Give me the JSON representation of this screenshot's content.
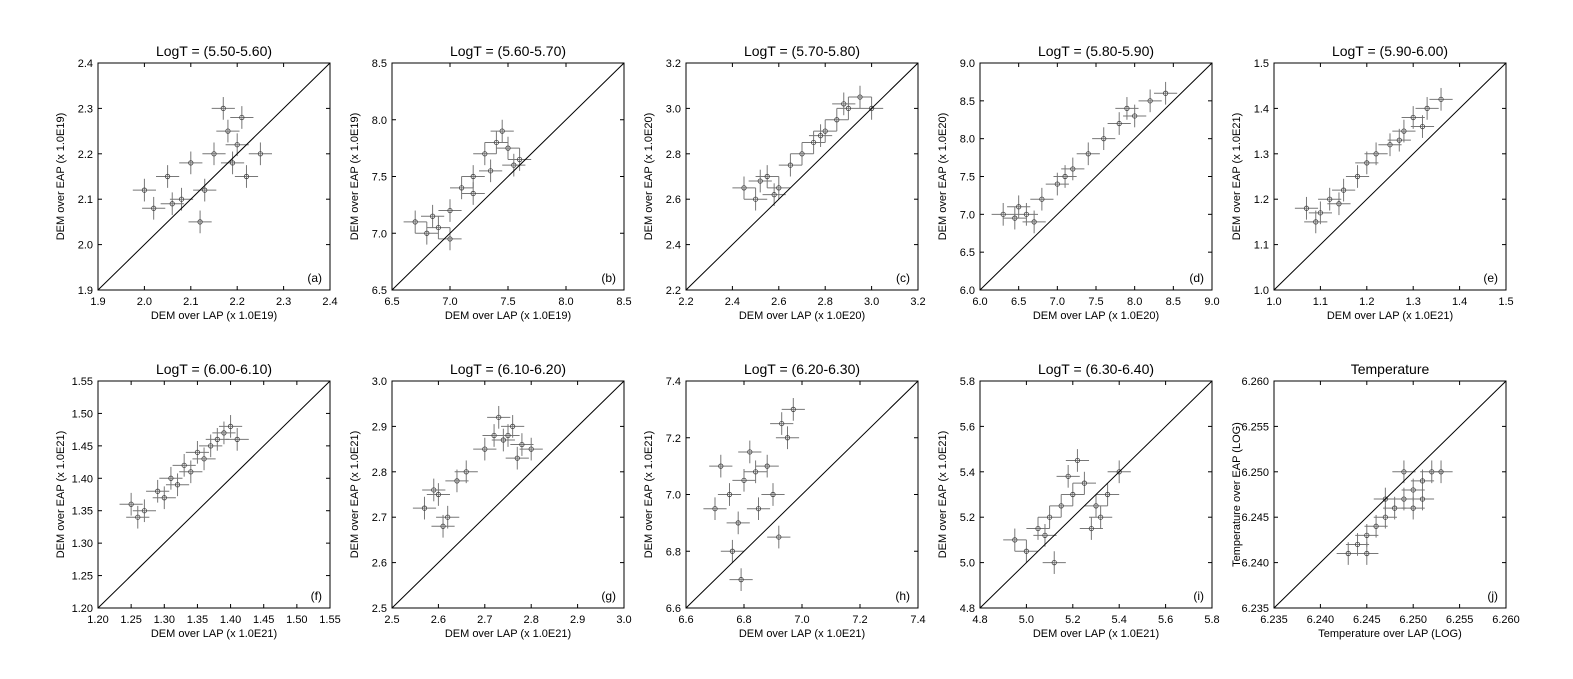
{
  "chart_data": [
    {
      "type": "scatter",
      "panel": "(a)",
      "title": "LogT = (5.50-5.60)",
      "xlabel": "DEM over LAP (x 1.0E19)",
      "ylabel": "DEM over EAP (x 1.0E19)",
      "xlim": [
        1.9,
        2.4
      ],
      "ylim": [
        1.9,
        2.4
      ],
      "xticks": [
        "1.9",
        "2.0",
        "2.1",
        "2.2",
        "2.3",
        "2.4"
      ],
      "yticks": [
        "1.9",
        "2.0",
        "2.1",
        "2.2",
        "2.3",
        "2.4"
      ],
      "points": [
        [
          2.0,
          2.12
        ],
        [
          2.02,
          2.08
        ],
        [
          2.05,
          2.15
        ],
        [
          2.08,
          2.1
        ],
        [
          2.1,
          2.18
        ],
        [
          2.12,
          2.05
        ],
        [
          2.15,
          2.2
        ],
        [
          2.18,
          2.25
        ],
        [
          2.2,
          2.22
        ],
        [
          2.22,
          2.15
        ],
        [
          2.25,
          2.2
        ],
        [
          2.17,
          2.3
        ],
        [
          2.13,
          2.12
        ],
        [
          2.21,
          2.28
        ],
        [
          2.19,
          2.18
        ],
        [
          2.06,
          2.09
        ]
      ]
    },
    {
      "type": "scatter",
      "panel": "(b)",
      "title": "LogT = (5.60-5.70)",
      "xlabel": "DEM over LAP (x 1.0E19)",
      "ylabel": "DEM over EAP (x 1.0E19)",
      "xlim": [
        6.5,
        8.5
      ],
      "ylim": [
        6.5,
        8.5
      ],
      "xticks": [
        "6.5",
        "7.0",
        "7.5",
        "8.0",
        "8.5"
      ],
      "yticks": [
        "6.5",
        "7.0",
        "7.5",
        "8.0",
        "8.5"
      ],
      "points": [
        [
          6.7,
          7.1
        ],
        [
          6.8,
          7.0
        ],
        [
          6.9,
          7.05
        ],
        [
          7.0,
          7.2
        ],
        [
          7.1,
          7.4
        ],
        [
          7.2,
          7.5
        ],
        [
          7.3,
          7.7
        ],
        [
          7.4,
          7.8
        ],
        [
          7.5,
          7.75
        ],
        [
          7.6,
          7.65
        ],
        [
          7.0,
          6.95
        ],
        [
          6.85,
          7.15
        ],
        [
          7.35,
          7.55
        ],
        [
          7.45,
          7.9
        ],
        [
          7.55,
          7.6
        ],
        [
          7.2,
          7.35
        ]
      ]
    },
    {
      "type": "scatter",
      "panel": "(c)",
      "title": "LogT = (5.70-5.80)",
      "xlabel": "DEM over LAP (x 1.0E20)",
      "ylabel": "DEM over EAP (x 1.0E20)",
      "xlim": [
        2.2,
        3.2
      ],
      "ylim": [
        2.2,
        3.2
      ],
      "xticks": [
        "2.2",
        "2.4",
        "2.6",
        "2.8",
        "3.0",
        "3.2"
      ],
      "yticks": [
        "2.2",
        "2.4",
        "2.6",
        "2.8",
        "3.0",
        "3.2"
      ],
      "points": [
        [
          2.45,
          2.65
        ],
        [
          2.5,
          2.6
        ],
        [
          2.55,
          2.7
        ],
        [
          2.6,
          2.65
        ],
        [
          2.65,
          2.75
        ],
        [
          2.7,
          2.8
        ],
        [
          2.75,
          2.85
        ],
        [
          2.8,
          2.9
        ],
        [
          2.85,
          2.95
        ],
        [
          2.9,
          3.0
        ],
        [
          2.95,
          3.05
        ],
        [
          3.0,
          3.0
        ],
        [
          2.58,
          2.62
        ],
        [
          2.88,
          3.02
        ],
        [
          2.52,
          2.68
        ],
        [
          2.78,
          2.88
        ]
      ]
    },
    {
      "type": "scatter",
      "panel": "(d)",
      "title": "LogT = (5.80-5.90)",
      "xlabel": "DEM over LAP (x 1.0E20)",
      "ylabel": "DEM over EAP (x 1.0E20)",
      "xlim": [
        6.0,
        9.0
      ],
      "ylim": [
        6.0,
        9.0
      ],
      "xticks": [
        "6.0",
        "6.5",
        "7.0",
        "7.5",
        "8.0",
        "8.5",
        "9.0"
      ],
      "yticks": [
        "6.0",
        "6.5",
        "7.0",
        "7.5",
        "8.0",
        "8.5",
        "9.0"
      ],
      "points": [
        [
          6.3,
          7.0
        ],
        [
          6.5,
          7.1
        ],
        [
          6.6,
          7.0
        ],
        [
          6.8,
          7.2
        ],
        [
          7.0,
          7.4
        ],
        [
          7.2,
          7.6
        ],
        [
          7.4,
          7.8
        ],
        [
          7.6,
          8.0
        ],
        [
          7.8,
          8.2
        ],
        [
          8.0,
          8.3
        ],
        [
          8.2,
          8.5
        ],
        [
          8.4,
          8.6
        ],
        [
          6.7,
          6.9
        ],
        [
          7.9,
          8.4
        ],
        [
          7.1,
          7.5
        ],
        [
          6.45,
          6.95
        ]
      ]
    },
    {
      "type": "scatter",
      "panel": "(e)",
      "title": "LogT = (5.90-6.00)",
      "xlabel": "DEM over LAP (x 1.0E21)",
      "ylabel": "DEM over EAP (x 1.0E21)",
      "xlim": [
        1.0,
        1.5
      ],
      "ylim": [
        1.0,
        1.5
      ],
      "xticks": [
        "1.0",
        "1.1",
        "1.2",
        "1.3",
        "1.4",
        "1.5"
      ],
      "yticks": [
        "1.0",
        "1.1",
        "1.2",
        "1.3",
        "1.4",
        "1.5"
      ],
      "points": [
        [
          1.07,
          1.18
        ],
        [
          1.1,
          1.17
        ],
        [
          1.12,
          1.2
        ],
        [
          1.15,
          1.22
        ],
        [
          1.18,
          1.25
        ],
        [
          1.2,
          1.28
        ],
        [
          1.22,
          1.3
        ],
        [
          1.25,
          1.32
        ],
        [
          1.28,
          1.35
        ],
        [
          1.3,
          1.38
        ],
        [
          1.33,
          1.4
        ],
        [
          1.36,
          1.42
        ],
        [
          1.09,
          1.15
        ],
        [
          1.27,
          1.33
        ],
        [
          1.14,
          1.19
        ],
        [
          1.32,
          1.36
        ]
      ]
    },
    {
      "type": "scatter",
      "panel": "(f)",
      "title": "LogT = (6.00-6.10)",
      "xlabel": "DEM over LAP (x 1.0E21)",
      "ylabel": "DEM over EAP (x 1.0E21)",
      "xlim": [
        1.2,
        1.55
      ],
      "ylim": [
        1.2,
        1.55
      ],
      "xticks": [
        "1.20",
        "1.25",
        "1.30",
        "1.35",
        "1.40",
        "1.45",
        "1.50",
        "1.55"
      ],
      "yticks": [
        "1.20",
        "1.25",
        "1.30",
        "1.35",
        "1.40",
        "1.45",
        "1.50",
        "1.55"
      ],
      "points": [
        [
          1.25,
          1.36
        ],
        [
          1.27,
          1.35
        ],
        [
          1.29,
          1.38
        ],
        [
          1.31,
          1.4
        ],
        [
          1.33,
          1.42
        ],
        [
          1.35,
          1.44
        ],
        [
          1.37,
          1.45
        ],
        [
          1.39,
          1.47
        ],
        [
          1.4,
          1.48
        ],
        [
          1.3,
          1.37
        ],
        [
          1.26,
          1.34
        ],
        [
          1.34,
          1.41
        ],
        [
          1.38,
          1.46
        ],
        [
          1.32,
          1.39
        ],
        [
          1.36,
          1.43
        ],
        [
          1.41,
          1.46
        ]
      ]
    },
    {
      "type": "scatter",
      "panel": "(g)",
      "title": "LogT = (6.10-6.20)",
      "xlabel": "DEM over LAP (x 1.0E21)",
      "ylabel": "DEM over EAP (x 1.0E21)",
      "xlim": [
        2.5,
        3.0
      ],
      "ylim": [
        2.5,
        3.0
      ],
      "xticks": [
        "2.5",
        "2.6",
        "2.7",
        "2.8",
        "2.9",
        "3.0"
      ],
      "yticks": [
        "2.5",
        "2.6",
        "2.7",
        "2.8",
        "2.9",
        "3.0"
      ],
      "points": [
        [
          2.57,
          2.72
        ],
        [
          2.6,
          2.75
        ],
        [
          2.62,
          2.7
        ],
        [
          2.64,
          2.78
        ],
        [
          2.66,
          2.8
        ],
        [
          2.7,
          2.85
        ],
        [
          2.72,
          2.88
        ],
        [
          2.74,
          2.87
        ],
        [
          2.76,
          2.9
        ],
        [
          2.78,
          2.86
        ],
        [
          2.8,
          2.85
        ],
        [
          2.61,
          2.68
        ],
        [
          2.73,
          2.92
        ],
        [
          2.77,
          2.83
        ],
        [
          2.59,
          2.76
        ],
        [
          2.75,
          2.88
        ]
      ]
    },
    {
      "type": "scatter",
      "panel": "(h)",
      "title": "LogT = (6.20-6.30)",
      "xlabel": "DEM over LAP (x 1.0E21)",
      "ylabel": "DEM over EAP (x 1.0E21)",
      "xlim": [
        6.6,
        7.4
      ],
      "ylim": [
        6.6,
        7.4
      ],
      "xticks": [
        "6.6",
        "6.8",
        "7.0",
        "7.2",
        "7.4"
      ],
      "yticks": [
        "6.6",
        "6.8",
        "7.0",
        "7.2",
        "7.4"
      ],
      "points": [
        [
          6.72,
          7.1
        ],
        [
          6.75,
          7.0
        ],
        [
          6.78,
          6.9
        ],
        [
          6.8,
          7.05
        ],
        [
          6.82,
          7.15
        ],
        [
          6.85,
          6.95
        ],
        [
          6.88,
          7.1
        ],
        [
          6.9,
          7.0
        ],
        [
          6.92,
          6.85
        ],
        [
          6.95,
          7.2
        ],
        [
          6.97,
          7.3
        ],
        [
          6.76,
          6.8
        ],
        [
          6.84,
          7.08
        ],
        [
          6.7,
          6.95
        ],
        [
          6.79,
          6.7
        ],
        [
          6.93,
          7.25
        ]
      ]
    },
    {
      "type": "scatter",
      "panel": "(i)",
      "title": "LogT = (6.30-6.40)",
      "xlabel": "DEM over LAP (x 1.0E21)",
      "ylabel": "DEM over EAP (x 1.0E21)",
      "xlim": [
        4.8,
        5.8
      ],
      "ylim": [
        4.8,
        5.8
      ],
      "xticks": [
        "4.8",
        "5.0",
        "5.2",
        "5.4",
        "5.6",
        "5.8"
      ],
      "yticks": [
        "4.8",
        "5.0",
        "5.2",
        "5.4",
        "5.6",
        "5.8"
      ],
      "points": [
        [
          4.95,
          5.1
        ],
        [
          5.0,
          5.05
        ],
        [
          5.05,
          5.15
        ],
        [
          5.1,
          5.2
        ],
        [
          5.15,
          5.25
        ],
        [
          5.2,
          5.3
        ],
        [
          5.25,
          5.35
        ],
        [
          5.3,
          5.25
        ],
        [
          5.35,
          5.3
        ],
        [
          5.4,
          5.4
        ],
        [
          5.22,
          5.45
        ],
        [
          5.12,
          5.0
        ],
        [
          5.28,
          5.15
        ],
        [
          5.08,
          5.12
        ],
        [
          5.18,
          5.38
        ],
        [
          5.32,
          5.2
        ]
      ]
    },
    {
      "type": "scatter",
      "panel": "(j)",
      "title": "Temperature",
      "xlabel": "Temperature over LAP (LOG)",
      "ylabel": "Temperature over EAP (LOG)",
      "xlim": [
        6.235,
        6.26
      ],
      "ylim": [
        6.235,
        6.26
      ],
      "xticks": [
        "6.235",
        "6.240",
        "6.245",
        "6.250",
        "6.255",
        "6.260"
      ],
      "yticks": [
        "6.235",
        "6.240",
        "6.245",
        "6.250",
        "6.255",
        "6.260"
      ],
      "points": [
        [
          6.243,
          6.241
        ],
        [
          6.244,
          6.242
        ],
        [
          6.245,
          6.243
        ],
        [
          6.246,
          6.244
        ],
        [
          6.247,
          6.245
        ],
        [
          6.248,
          6.246
        ],
        [
          6.249,
          6.247
        ],
        [
          6.25,
          6.248
        ],
        [
          6.251,
          6.249
        ],
        [
          6.252,
          6.25
        ],
        [
          6.253,
          6.25
        ],
        [
          6.247,
          6.247
        ],
        [
          6.25,
          6.246
        ],
        [
          6.245,
          6.241
        ],
        [
          6.251,
          6.247
        ],
        [
          6.249,
          6.25
        ]
      ]
    }
  ],
  "colors": {
    "points": "#777777",
    "diagonal": "#000000",
    "frame": "#000000"
  }
}
